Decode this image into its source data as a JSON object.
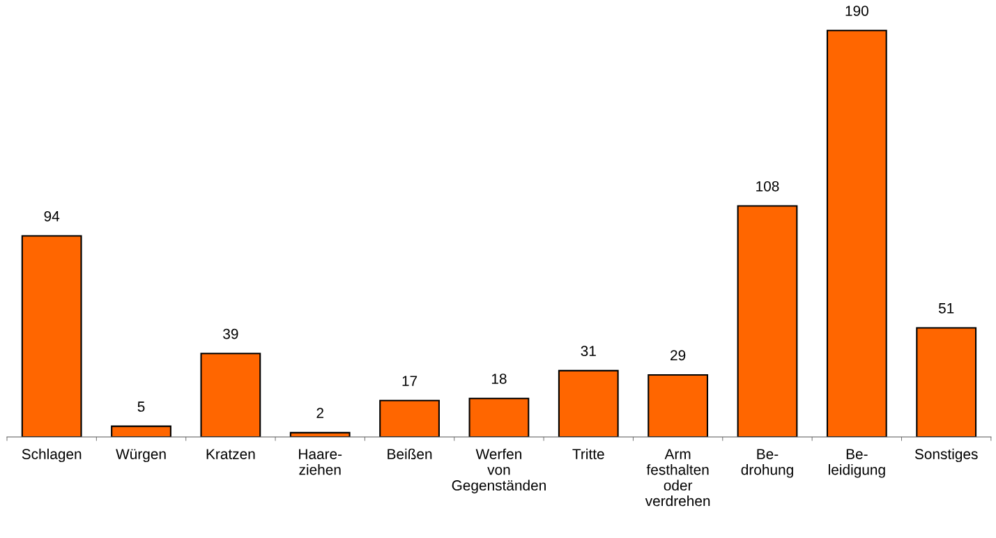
{
  "chart_data": {
    "type": "bar",
    "categories": [
      "Schlagen",
      "Würgen",
      "Kratzen",
      "Haare-\nziehen",
      "Beißen",
      "Werfen\nvon\nGegenständen",
      "Tritte",
      "Arm\nfesthalten\noder\nverdrehen",
      "Be-\ndrohung",
      "Be-\nleidigung",
      "Sonstiges"
    ],
    "values": [
      94,
      5,
      39,
      2,
      17,
      18,
      31,
      29,
      108,
      190,
      51
    ],
    "color": "#ff6600",
    "data_labels": true,
    "grid": false,
    "legend": false
  }
}
